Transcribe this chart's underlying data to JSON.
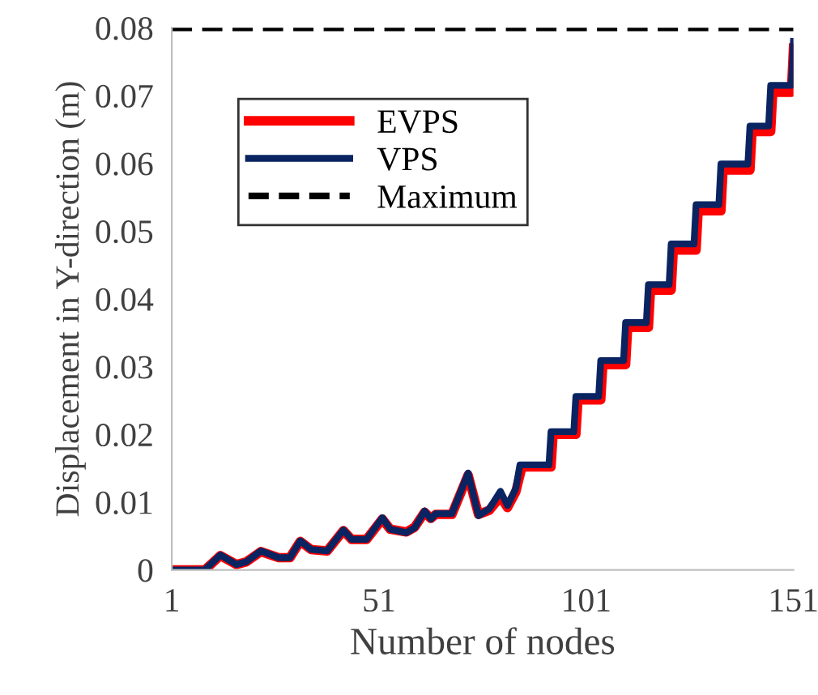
{
  "chart_data": {
    "type": "line",
    "xlabel": "Number of nodes",
    "ylabel": "Displacement in Y-direction (m)",
    "xlim": [
      1,
      151
    ],
    "xticks": [
      1,
      51,
      101,
      151
    ],
    "ylim": [
      0,
      0.08
    ],
    "yticks": [
      0,
      0.01,
      0.02,
      0.03,
      0.04,
      0.05,
      0.06,
      0.07,
      0.08
    ],
    "grid": false,
    "legend": "top left",
    "marker": "none",
    "series": [
      {
        "name": "EVPS",
        "color": "#ff0000",
        "line_style": "solid",
        "x": [
          1,
          9,
          12.7,
          16.6,
          19,
          22.5,
          26.8,
          29.5,
          32,
          34.6,
          38.5,
          42.4,
          44.4,
          48,
          51.8,
          53.7,
          57.6,
          59.6,
          62,
          63.5,
          64.7,
          68.6,
          72.5,
          75,
          77.6,
          80.3,
          82,
          84,
          85.5,
          92.5,
          93,
          98.5,
          99,
          104.5,
          105,
          110.5,
          111,
          116,
          116.5,
          121.5,
          122,
          127.5,
          128,
          133.5,
          134,
          140.5,
          141,
          145.5,
          146,
          150.5,
          151
        ],
        "values": [
          0,
          0,
          0.0021,
          0.0008,
          0.0012,
          0.0027,
          0.0018,
          0.0018,
          0.0042,
          0.003,
          0.0028,
          0.0058,
          0.0045,
          0.0045,
          0.0075,
          0.006,
          0.0056,
          0.0063,
          0.0085,
          0.0076,
          0.0082,
          0.0082,
          0.014,
          0.0082,
          0.0088,
          0.0108,
          0.0092,
          0.0115,
          0.0152,
          0.0152,
          0.02,
          0.02,
          0.0251,
          0.0251,
          0.0303,
          0.0303,
          0.0358,
          0.0358,
          0.0413,
          0.0413,
          0.0472,
          0.0472,
          0.053,
          0.053,
          0.059,
          0.059,
          0.0647,
          0.0647,
          0.0705,
          0.0705,
          0.077
        ]
      },
      {
        "name": "VPS",
        "color": "#0a2462",
        "line_style": "solid",
        "x": [
          1,
          9,
          12.7,
          16.6,
          19,
          22.5,
          26.8,
          29.5,
          32,
          34.6,
          38.5,
          42.4,
          44.4,
          48,
          51.8,
          53.7,
          57.6,
          59.6,
          62,
          63.5,
          64.7,
          68.6,
          72.5,
          75,
          77.6,
          80.3,
          82,
          84,
          85,
          92,
          92.5,
          98,
          98.5,
          104,
          104.5,
          110,
          110.5,
          115.5,
          116,
          121,
          121.5,
          127,
          127.5,
          133,
          133.5,
          140,
          140.5,
          145,
          145.5,
          150.5,
          151
        ],
        "values": [
          0,
          0,
          0.0022,
          0.0008,
          0.0012,
          0.0028,
          0.0018,
          0.0018,
          0.0043,
          0.003,
          0.0028,
          0.0059,
          0.0045,
          0.0045,
          0.0077,
          0.006,
          0.0055,
          0.0062,
          0.0087,
          0.0075,
          0.0083,
          0.0083,
          0.0143,
          0.008,
          0.009,
          0.0116,
          0.0095,
          0.012,
          0.0155,
          0.0155,
          0.0204,
          0.0204,
          0.0256,
          0.0256,
          0.0309,
          0.0309,
          0.0365,
          0.0365,
          0.0421,
          0.0421,
          0.0481,
          0.0481,
          0.0539,
          0.0539,
          0.0599,
          0.0599,
          0.0655,
          0.0655,
          0.0715,
          0.0715,
          0.078
        ]
      },
      {
        "name": "Maximum",
        "color": "#000000",
        "line_style": "dashed",
        "x": [
          1,
          151
        ],
        "values": [
          0.08,
          0.08
        ]
      }
    ]
  }
}
